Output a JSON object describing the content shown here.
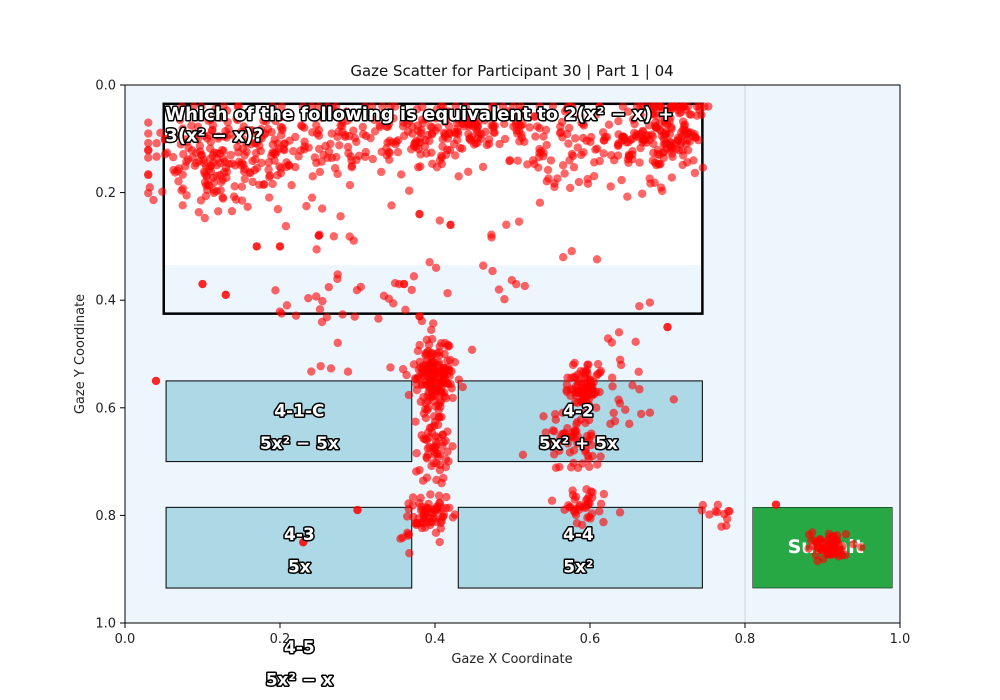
{
  "chart_data": {
    "type": "scatter",
    "title": "Gaze Scatter for Participant 30 | Part 1 | 04",
    "xlabel": "Gaze X Coordinate",
    "ylabel": "Gaze Y Coordinate",
    "xlim": [
      0.0,
      1.0
    ],
    "ylim": [
      1.0,
      0.0
    ],
    "y_inverted": true,
    "x_ticks": [
      "0.0",
      "0.2",
      "0.4",
      "0.6",
      "0.8",
      "1.0"
    ],
    "y_ticks": [
      "0.0",
      "0.2",
      "0.4",
      "0.6",
      "0.8",
      "1.0"
    ],
    "grid": false,
    "point_color": "#ff0000",
    "colors": {
      "background": "#eef6fd",
      "question_box": "#ffffff",
      "option_box": "#add8e6",
      "submit_box": "#28a745"
    },
    "question": {
      "text_line1": "Which of the following is equivalent to 2(x² − x) +",
      "text_line2": "3(x² − x)?"
    },
    "options": [
      {
        "id": "4-1-C",
        "text": "5x² − 5x"
      },
      {
        "id": "4-2",
        "text": "5x² + 5x"
      },
      {
        "id": "4-3",
        "text": "5x"
      },
      {
        "id": "4-4",
        "text": "5x²"
      },
      {
        "id": "4-5",
        "text": "5x² − x"
      }
    ],
    "submit_label": "Submit",
    "clusters": [
      {
        "cx": 0.11,
        "cy": 0.15,
        "sx": 0.04,
        "sy": 0.05,
        "n": 150
      },
      {
        "cx": 0.22,
        "cy": 0.11,
        "sx": 0.06,
        "sy": 0.04,
        "n": 160
      },
      {
        "cx": 0.36,
        "cy": 0.1,
        "sx": 0.04,
        "sy": 0.03,
        "n": 90
      },
      {
        "cx": 0.45,
        "cy": 0.08,
        "sx": 0.04,
        "sy": 0.02,
        "n": 90
      },
      {
        "cx": 0.56,
        "cy": 0.1,
        "sx": 0.04,
        "sy": 0.05,
        "n": 80
      },
      {
        "cx": 0.66,
        "cy": 0.1,
        "sx": 0.03,
        "sy": 0.04,
        "n": 90
      },
      {
        "cx": 0.71,
        "cy": 0.08,
        "sx": 0.02,
        "sy": 0.04,
        "n": 110
      },
      {
        "cx": 0.4,
        "cy": 0.54,
        "sx": 0.015,
        "sy": 0.03,
        "n": 160
      },
      {
        "cx": 0.4,
        "cy": 0.67,
        "sx": 0.01,
        "sy": 0.04,
        "n": 60
      },
      {
        "cx": 0.39,
        "cy": 0.8,
        "sx": 0.015,
        "sy": 0.02,
        "n": 70
      },
      {
        "cx": 0.59,
        "cy": 0.56,
        "sx": 0.012,
        "sy": 0.02,
        "n": 80
      },
      {
        "cx": 0.58,
        "cy": 0.66,
        "sx": 0.02,
        "sy": 0.03,
        "n": 60
      },
      {
        "cx": 0.59,
        "cy": 0.78,
        "sx": 0.015,
        "sy": 0.02,
        "n": 40
      },
      {
        "cx": 0.91,
        "cy": 0.86,
        "sx": 0.012,
        "sy": 0.012,
        "n": 70
      },
      {
        "cx": 0.77,
        "cy": 0.79,
        "sx": 0.01,
        "sy": 0.015,
        "n": 12
      },
      {
        "cx": 0.28,
        "cy": 0.4,
        "sx": 0.05,
        "sy": 0.08,
        "n": 40
      },
      {
        "cx": 0.45,
        "cy": 0.3,
        "sx": 0.08,
        "sy": 0.1,
        "n": 30
      },
      {
        "cx": 0.64,
        "cy": 0.55,
        "sx": 0.02,
        "sy": 0.06,
        "n": 25
      }
    ],
    "points": [
      [
        0.04,
        0.55
      ],
      [
        0.7,
        0.45
      ],
      [
        0.41,
        0.65
      ],
      [
        0.2,
        0.3
      ],
      [
        0.17,
        0.3
      ],
      [
        0.1,
        0.37
      ],
      [
        0.13,
        0.39
      ],
      [
        0.25,
        0.28
      ],
      [
        0.38,
        0.24
      ],
      [
        0.42,
        0.26
      ],
      [
        0.36,
        0.37
      ],
      [
        0.38,
        0.43
      ],
      [
        0.3,
        0.79
      ],
      [
        0.23,
        0.85
      ],
      [
        0.84,
        0.78
      ]
    ]
  }
}
